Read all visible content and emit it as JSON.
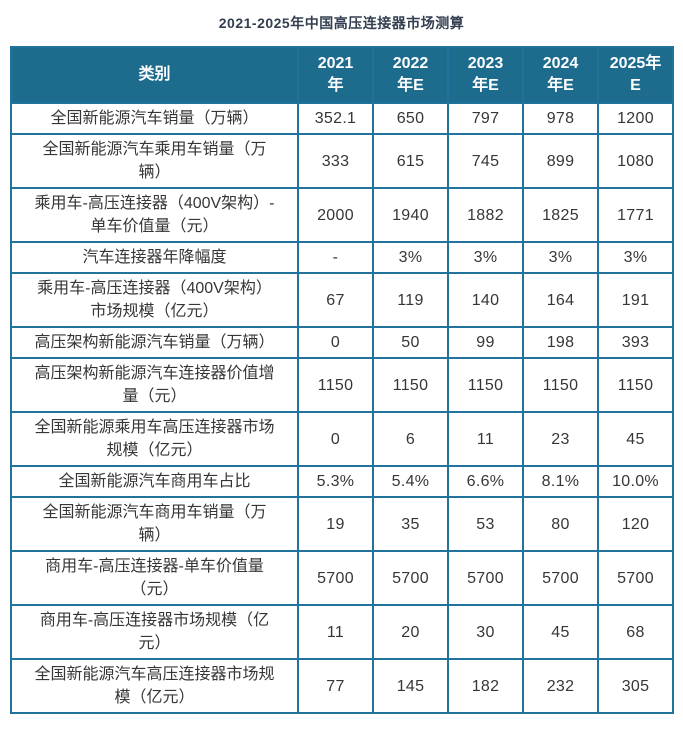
{
  "colors": {
    "header_bg": "#1d6b8d",
    "border": "#20749b",
    "title_text": "#333f50",
    "body_text": "#363636",
    "header_text": "#ffffff"
  },
  "chart_data": {
    "type": "table",
    "title": "2021-2025年中国高压连接器市场测算",
    "category_header": "类别",
    "columns": [
      "类别",
      "2021年",
      "2022年E",
      "2023年E",
      "2024年E",
      "2025年E"
    ],
    "column_line_breaks": [
      [
        "2021",
        "年"
      ],
      [
        "2022",
        "年E"
      ],
      [
        "2023",
        "年E"
      ],
      [
        "2024",
        "年E"
      ],
      [
        "2025年",
        "E"
      ]
    ],
    "rows": [
      {
        "label": "全国新能源汽车销量（万辆）",
        "values": [
          "352.1",
          "650",
          "797",
          "978",
          "1200"
        ]
      },
      {
        "label": "全国新能源汽车乘用车销量（万辆）",
        "values": [
          "333",
          "615",
          "745",
          "899",
          "1080"
        ]
      },
      {
        "label": "乘用车-高压连接器（400V架构）-单车价值量（元）",
        "values": [
          "2000",
          "1940",
          "1882",
          "1825",
          "1771"
        ]
      },
      {
        "label": "汽车连接器年降幅度",
        "values": [
          "-",
          "3%",
          "3%",
          "3%",
          "3%"
        ]
      },
      {
        "label": "乘用车-高压连接器（400V架构）市场规模（亿元）",
        "values": [
          "67",
          "119",
          "140",
          "164",
          "191"
        ]
      },
      {
        "label": "高压架构新能源汽车销量（万辆）",
        "values": [
          "0",
          "50",
          "99",
          "198",
          "393"
        ]
      },
      {
        "label": "高压架构新能源汽车连接器价值增量（元）",
        "values": [
          "1150",
          "1150",
          "1150",
          "1150",
          "1150"
        ]
      },
      {
        "label": "全国新能源乘用车高压连接器市场规模（亿元）",
        "values": [
          "0",
          "6",
          "11",
          "23",
          "45"
        ]
      },
      {
        "label": "全国新能源汽车商用车占比",
        "values": [
          "5.3%",
          "5.4%",
          "6.6%",
          "8.1%",
          "10.0%"
        ]
      },
      {
        "label": "全国新能源汽车商用车销量（万辆）",
        "values": [
          "19",
          "35",
          "53",
          "80",
          "120"
        ]
      },
      {
        "label": "商用车-高压连接器-单车价值量（元）",
        "values": [
          "5700",
          "5700",
          "5700",
          "5700",
          "5700"
        ]
      },
      {
        "label": "商用车-高压连接器市场规模（亿元）",
        "values": [
          "11",
          "20",
          "30",
          "45",
          "68"
        ]
      },
      {
        "label": "全国新能源汽车高压连接器市场规模（亿元）",
        "values": [
          "77",
          "145",
          "182",
          "232",
          "305"
        ]
      }
    ]
  }
}
